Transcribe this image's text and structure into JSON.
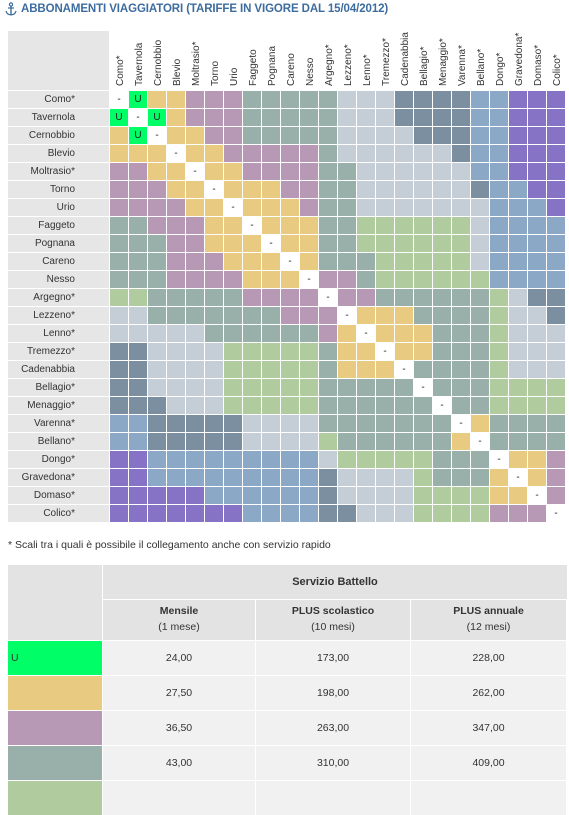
{
  "page_title": "ABBONAMENTI VIAGGIATORI (TARIFFE IN VIGORE DAL 15/04/2012)",
  "anchor_icon": "anchor-icon",
  "stations": [
    "Como*",
    "Tavernola",
    "Cernobbio",
    "Blevio",
    "Moltrasio*",
    "Torno",
    "Urio",
    "Faggeto",
    "Pognana",
    "Careno",
    "Nesso",
    "Argegno*",
    "Lezzeno*",
    "Lenno*",
    "Tremezzo*",
    "Cadenabbia",
    "Bellagio*",
    "Menaggio*",
    "Varenna*",
    "Bellano*",
    "Dongo*",
    "Gravedona*",
    "Domaso*",
    "Colico*"
  ],
  "colors": {
    "U": "#00ff66",
    "A": "#e8cb80",
    "B": "#b899b5",
    "C": "#99b0aa",
    "D": "#b0cc9f",
    "E": "#c5ced6",
    "F": "#7c8fa1",
    "G": "#8ba9c7",
    "H": "#8773c6",
    "self": "#ffffff"
  },
  "matrix": [
    "-UAABBBCCCCCEEEFFFFGGHHH",
    "U-UABBBCCCCCEEEFFFFGGHHH",
    "AU-AABBCCCCCEEEEFFFGGHHH",
    "AAA-AABBBBBCEEEEEEFGGHHH",
    "BBAA-AABBBBCCEEEEEEGGHHH",
    "BBBAA-AAABBCCEEEEEEFGGHH",
    "BBBBAA-AAABCCEEEEEEEGGGH",
    "CCBBBAA-AAACCDDDDDDEGGGG",
    "CCCBBAAA-AACCDDDDDDEGGGG",
    "CCCBBBAAA-ACCCDDDDDEGGGG",
    "CCCBBBBAAA-BBCDDDDDDGGGG",
    "DDCCCCCBBBB-BBCCCCCCDEFF",
    "EECCCCCCCBBB-AAACCCCDEEF",
    "EEEEECCCCCCBA-AAACCCDEEE",
    "FFEEEEDDDDDCAA-AACCCDEEE",
    "FFEEEEDDDDDCAAA-CCCCDEEE",
    "FFEEEEDDDDDCCCCC-CCCDDDD",
    "FFFEEEDDDDDCCCCCC-CCDDDD",
    "GGFFFFFEEEECCCCCCC-ACCCC",
    "GGFFFFFEEEEDCCCCCCA-CCCC",
    "HHGGGGGGGGGEDDDDDCCC-AAB",
    "HHGGGGGGGGGFEEEEDCCCA-AB",
    "HHHHHGGGGGGFEEEEDDDDAA-B",
    "HHHHHHHGGGGFFEEEDDDDBBB-"
  ],
  "note": "* Scali tra i quali è possibile il collegamento anche con servizio rapido",
  "price_table": {
    "service": "Servizio Battello",
    "columns": [
      {
        "name": "Mensile",
        "sub": "(1 mese)"
      },
      {
        "name": "PLUS scolastico",
        "sub": "(10 mesi)"
      },
      {
        "name": "PLUS annuale",
        "sub": "(12 mesi)"
      }
    ],
    "rows": [
      {
        "code": "U",
        "color": "#00ff66",
        "values": [
          "24,00",
          "173,00",
          "228,00"
        ]
      },
      {
        "code": "",
        "color": "#e8cb80",
        "values": [
          "27,50",
          "198,00",
          "262,00"
        ]
      },
      {
        "code": "",
        "color": "#b899b5",
        "values": [
          "36,50",
          "263,00",
          "347,00"
        ]
      },
      {
        "code": "",
        "color": "#99b0aa",
        "values": [
          "43,00",
          "310,00",
          "409,00"
        ]
      },
      {
        "code": "",
        "color": "#b0cc9f",
        "values": [
          "",
          "",
          ""
        ]
      }
    ]
  }
}
